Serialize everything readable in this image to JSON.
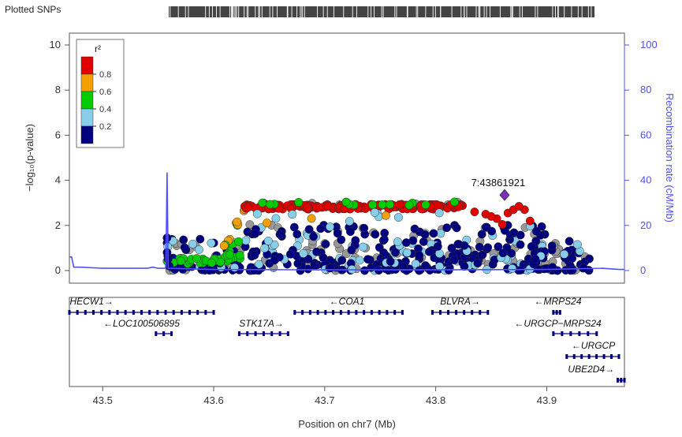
{
  "header": {
    "plotted_snps_label": "Plotted SNPs"
  },
  "colors": {
    "recomb": "#5050ff",
    "lead_snp": "#7b2fbe",
    "ld_bins": [
      "#00007f",
      "#87ceeb",
      "#00cc00",
      "#f4a000",
      "#e00000"
    ],
    "gene": "#00007f",
    "axis": "#555555"
  },
  "legend": {
    "title": "r²",
    "ticks": [
      "0.8",
      "0.6",
      "0.4",
      "0.2"
    ]
  },
  "chart_data": {
    "type": "scatter",
    "xlabel": "Position on chr7 (Mb)",
    "ylabel": "−log₁₀(p-value)",
    "y2label": "Recombination rate (cM/Mb)",
    "xlim": [
      43.47,
      43.97
    ],
    "ylim": [
      0,
      10
    ],
    "y2lim": [
      0,
      100
    ],
    "x_ticks": [
      "43.5",
      "43.6",
      "43.7",
      "43.8",
      "43.9"
    ],
    "y_ticks": [
      "0",
      "2",
      "4",
      "6",
      "8",
      "10"
    ],
    "y2_ticks": [
      "0",
      "20",
      "40",
      "60",
      "80",
      "100"
    ],
    "lead_snp": {
      "label": "7:43861921",
      "x": 43.862,
      "y": 3.35
    },
    "recombination": [
      [
        43.47,
        0.6
      ],
      [
        43.472,
        0.6
      ],
      [
        43.474,
        0.15
      ],
      [
        43.48,
        0.15
      ],
      [
        43.5,
        0.1
      ],
      [
        43.52,
        0.1
      ],
      [
        43.54,
        0.1
      ],
      [
        43.545,
        0.15
      ],
      [
        43.55,
        0.1
      ],
      [
        43.556,
        0.1
      ],
      [
        43.557,
        0.15
      ],
      [
        43.558,
        4.35
      ],
      [
        43.559,
        0.1
      ],
      [
        43.6,
        0.05
      ],
      [
        43.7,
        0.03
      ],
      [
        43.8,
        0.03
      ],
      [
        43.9,
        0.05
      ],
      [
        43.95,
        0.1
      ],
      [
        43.965,
        0.05
      ],
      [
        43.97,
        0.05
      ]
    ],
    "points": {
      "summary": "r² bins: navy ≤0.2, light blue 0.2–0.4, green 0.4–0.6, orange 0.6–0.8, red >0.8; grey = no LD data",
      "red_band": {
        "x": [
          43.628,
          43.825
        ],
        "y": 2.8
      },
      "green_band": {
        "x": [
          43.558,
          43.625
        ],
        "y": 0.4
      },
      "navy_cloud": {
        "x": [
          43.558,
          43.94
        ],
        "y": [
          0,
          1.5
        ]
      },
      "upper_navy": {
        "x": [
          43.63,
          43.9
        ],
        "y": [
          1.5,
          2.0
        ]
      }
    },
    "genes": [
      {
        "name": "HECW1",
        "strand": "+",
        "start": 43.47,
        "end": 43.6,
        "row": 0,
        "label_x": 43.49
      },
      {
        "name": "LOC100506895",
        "strand": "-",
        "start": 43.548,
        "end": 43.562,
        "row": 1,
        "label_x": 43.535
      },
      {
        "name": "STK17A",
        "strand": "+",
        "start": 43.623,
        "end": 43.667,
        "row": 1,
        "label_x": 43.643
      },
      {
        "name": "COA1",
        "strand": "-",
        "start": 43.673,
        "end": 43.77,
        "row": 0,
        "label_x": 43.72
      },
      {
        "name": "BLVRA",
        "strand": "+",
        "start": 43.797,
        "end": 43.847,
        "row": 0,
        "label_x": 43.822
      },
      {
        "name": "MRPS24",
        "strand": "-",
        "start": 43.906,
        "end": 43.912,
        "row": 0,
        "label_x": 43.91
      },
      {
        "name": "URGCP−MRPS24",
        "strand": "-",
        "start": 43.906,
        "end": 43.945,
        "row": 1,
        "label_x": 43.91
      },
      {
        "name": "URGCP",
        "strand": "-",
        "start": 43.918,
        "end": 43.965,
        "row": 2,
        "label_x": 43.942
      },
      {
        "name": "UBE2D4",
        "strand": "+",
        "start": 43.964,
        "end": 43.97,
        "row": 3,
        "label_x": 43.94
      }
    ]
  }
}
